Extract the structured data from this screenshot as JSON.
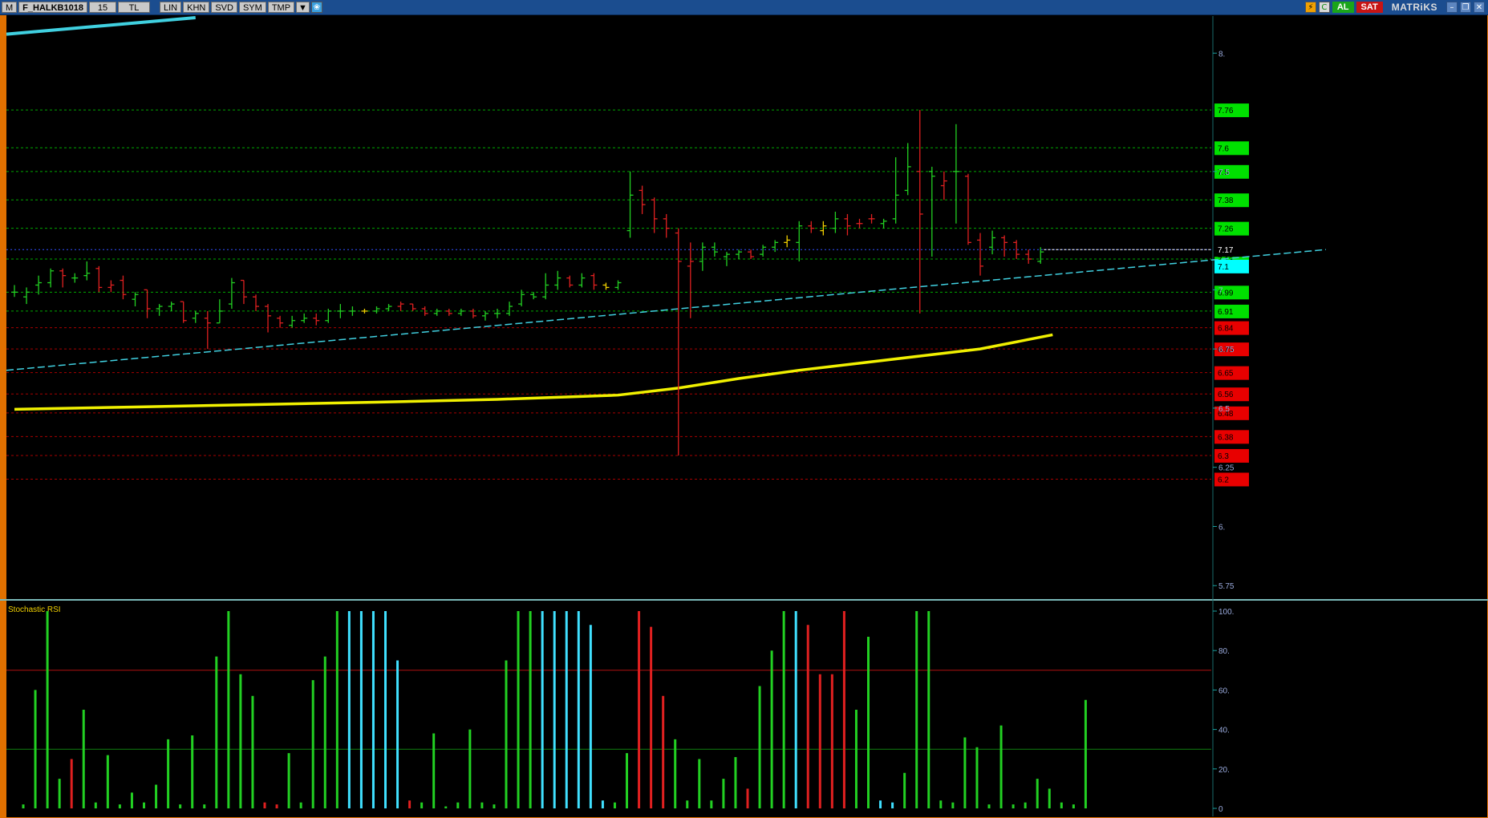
{
  "titlebar": {
    "menu_glyph": "M",
    "symbol": "F_HALKB1018",
    "period": "15",
    "currency": "TL",
    "buttons": [
      "LIN",
      "KHN",
      "SVD",
      "SYM",
      "TMP"
    ],
    "buy_label": "AL",
    "sell_label": "SAT",
    "brand": "MATRiKS"
  },
  "chart_data": [
    {
      "type": "ohlc",
      "title": "",
      "ylim": [
        5.7,
        8.15
      ],
      "axis_ticks": [
        "8.",
        "7.5",
        "7.",
        "6.75",
        "6.5",
        "6.25",
        "6.",
        "5.75"
      ],
      "price_levels": [
        {
          "value": 7.76,
          "label": "7.76",
          "color": "#00e000"
        },
        {
          "value": 7.6,
          "label": "7.6",
          "color": "#00e000"
        },
        {
          "value": 7.5,
          "label": "7.5",
          "color": "#00e000"
        },
        {
          "value": 7.38,
          "label": "7.38",
          "color": "#00e000"
        },
        {
          "value": 7.26,
          "label": "7.26",
          "color": "#00e000"
        },
        {
          "value": 7.13,
          "label": "7.13",
          "color": "#00e000"
        },
        {
          "value": 6.99,
          "label": "6.99",
          "color": "#00e000"
        },
        {
          "value": 6.91,
          "label": "6.91",
          "color": "#00e000"
        },
        {
          "value": 6.84,
          "label": "6.84",
          "color": "#e00000"
        },
        {
          "value": 6.75,
          "label": "6.75",
          "color": "#e00000"
        },
        {
          "value": 6.65,
          "label": "6.65",
          "color": "#e00000"
        },
        {
          "value": 6.56,
          "label": "6.56",
          "color": "#e00000"
        },
        {
          "value": 6.48,
          "label": "6.48",
          "color": "#e00000"
        },
        {
          "value": 6.38,
          "label": "6.38",
          "color": "#e00000"
        },
        {
          "value": 6.3,
          "label": "6.3",
          "color": "#e00000"
        },
        {
          "value": 6.2,
          "label": "6.2",
          "color": "#e00000"
        }
      ],
      "last_price": {
        "value": 7.17,
        "label": "7.17"
      },
      "cyan_marker": {
        "value": 7.1,
        "label": "7.1"
      },
      "trendline": {
        "start": [
          0,
          6.66
        ],
        "end": [
          98,
          7.17
        ]
      },
      "trendline_top": {
        "start": [
          0,
          8.08
        ],
        "end": [
          15,
          8.15
        ]
      },
      "moving_average": [
        [
          0,
          6.495
        ],
        [
          10,
          6.505
        ],
        [
          20,
          6.515
        ],
        [
          30,
          6.525
        ],
        [
          40,
          6.537
        ],
        [
          50,
          6.555
        ],
        [
          55,
          6.585
        ],
        [
          60,
          6.625
        ],
        [
          65,
          6.66
        ],
        [
          70,
          6.69
        ],
        [
          75,
          6.72
        ],
        [
          80,
          6.75
        ],
        [
          84,
          6.79
        ],
        [
          86,
          6.81
        ]
      ],
      "bars": [
        {
          "o": 6.99,
          "h": 7.02,
          "l": 6.97,
          "c": 6.99,
          "d": "u"
        },
        {
          "o": 6.97,
          "h": 7.01,
          "l": 6.94,
          "c": 6.99,
          "d": "u"
        },
        {
          "o": 7.02,
          "h": 7.06,
          "l": 6.98,
          "c": 7.03,
          "d": "u"
        },
        {
          "o": 7.03,
          "h": 7.09,
          "l": 7.01,
          "c": 7.08,
          "d": "u"
        },
        {
          "o": 7.08,
          "h": 7.09,
          "l": 7.01,
          "c": 7.06,
          "d": "d"
        },
        {
          "o": 7.05,
          "h": 7.07,
          "l": 7.03,
          "c": 7.05,
          "d": "u"
        },
        {
          "o": 7.06,
          "h": 7.12,
          "l": 7.04,
          "c": 7.07,
          "d": "u"
        },
        {
          "o": 7.09,
          "h": 7.1,
          "l": 6.99,
          "c": 7.01,
          "d": "d"
        },
        {
          "o": 7.01,
          "h": 7.04,
          "l": 6.99,
          "c": 7.02,
          "d": "d"
        },
        {
          "o": 7.04,
          "h": 7.06,
          "l": 6.96,
          "c": 6.98,
          "d": "d"
        },
        {
          "o": 6.96,
          "h": 6.99,
          "l": 6.93,
          "c": 6.98,
          "d": "u"
        },
        {
          "o": 7.0,
          "h": 7.0,
          "l": 6.88,
          "c": 6.92,
          "d": "d"
        },
        {
          "o": 6.92,
          "h": 6.94,
          "l": 6.89,
          "c": 6.93,
          "d": "u"
        },
        {
          "o": 6.93,
          "h": 6.95,
          "l": 6.91,
          "c": 6.94,
          "d": "u"
        },
        {
          "o": 6.95,
          "h": 6.95,
          "l": 6.86,
          "c": 6.87,
          "d": "d"
        },
        {
          "o": 6.88,
          "h": 6.91,
          "l": 6.86,
          "c": 6.9,
          "d": "u"
        },
        {
          "o": 6.88,
          "h": 6.91,
          "l": 6.75,
          "c": 6.86,
          "d": "d"
        },
        {
          "o": 6.86,
          "h": 6.96,
          "l": 6.86,
          "c": 6.91,
          "d": "u"
        },
        {
          "o": 6.94,
          "h": 7.05,
          "l": 6.92,
          "c": 7.03,
          "d": "u"
        },
        {
          "o": 7.04,
          "h": 7.04,
          "l": 6.94,
          "c": 6.97,
          "d": "d"
        },
        {
          "o": 6.97,
          "h": 6.98,
          "l": 6.91,
          "c": 6.93,
          "d": "d"
        },
        {
          "o": 6.93,
          "h": 6.94,
          "l": 6.82,
          "c": 6.89,
          "d": "d"
        },
        {
          "o": 6.88,
          "h": 6.89,
          "l": 6.84,
          "c": 6.86,
          "d": "d"
        },
        {
          "o": 6.85,
          "h": 6.89,
          "l": 6.84,
          "c": 6.87,
          "d": "u"
        },
        {
          "o": 6.87,
          "h": 6.9,
          "l": 6.86,
          "c": 6.88,
          "d": "u"
        },
        {
          "o": 6.88,
          "h": 6.9,
          "l": 6.85,
          "c": 6.87,
          "d": "d"
        },
        {
          "o": 6.87,
          "h": 6.92,
          "l": 6.86,
          "c": 6.91,
          "d": "u"
        },
        {
          "o": 6.91,
          "h": 6.94,
          "l": 6.88,
          "c": 6.91,
          "d": "u"
        },
        {
          "o": 6.91,
          "h": 6.93,
          "l": 6.89,
          "c": 6.91,
          "d": "u"
        },
        {
          "o": 6.91,
          "h": 6.92,
          "l": 6.9,
          "c": 6.91,
          "d": "y"
        },
        {
          "o": 6.91,
          "h": 6.93,
          "l": 6.9,
          "c": 6.92,
          "d": "u"
        },
        {
          "o": 6.92,
          "h": 6.94,
          "l": 6.91,
          "c": 6.93,
          "d": "u"
        },
        {
          "o": 6.93,
          "h": 6.95,
          "l": 6.91,
          "c": 6.94,
          "d": "d"
        },
        {
          "o": 6.94,
          "h": 6.94,
          "l": 6.91,
          "c": 6.92,
          "d": "d"
        },
        {
          "o": 6.92,
          "h": 6.93,
          "l": 6.89,
          "c": 6.9,
          "d": "d"
        },
        {
          "o": 6.9,
          "h": 6.92,
          "l": 6.89,
          "c": 6.91,
          "d": "u"
        },
        {
          "o": 6.91,
          "h": 6.92,
          "l": 6.89,
          "c": 6.9,
          "d": "d"
        },
        {
          "o": 6.9,
          "h": 6.92,
          "l": 6.89,
          "c": 6.91,
          "d": "u"
        },
        {
          "o": 6.91,
          "h": 6.92,
          "l": 6.88,
          "c": 6.89,
          "d": "d"
        },
        {
          "o": 6.89,
          "h": 6.91,
          "l": 6.87,
          "c": 6.9,
          "d": "u"
        },
        {
          "o": 6.9,
          "h": 6.92,
          "l": 6.88,
          "c": 6.9,
          "d": "u"
        },
        {
          "o": 6.9,
          "h": 6.95,
          "l": 6.89,
          "c": 6.93,
          "d": "u"
        },
        {
          "o": 6.94,
          "h": 7.0,
          "l": 6.93,
          "c": 6.98,
          "d": "u"
        },
        {
          "o": 6.98,
          "h": 6.99,
          "l": 6.96,
          "c": 6.97,
          "d": "u"
        },
        {
          "o": 6.97,
          "h": 7.07,
          "l": 6.96,
          "c": 7.02,
          "d": "u"
        },
        {
          "o": 7.02,
          "h": 7.08,
          "l": 7.0,
          "c": 7.05,
          "d": "u"
        },
        {
          "o": 7.05,
          "h": 7.06,
          "l": 7.01,
          "c": 7.02,
          "d": "d"
        },
        {
          "o": 7.02,
          "h": 7.07,
          "l": 7.01,
          "c": 7.05,
          "d": "u"
        },
        {
          "o": 7.06,
          "h": 7.07,
          "l": 7.0,
          "c": 7.02,
          "d": "d"
        },
        {
          "o": 7.02,
          "h": 7.03,
          "l": 7.0,
          "c": 7.01,
          "d": "y"
        },
        {
          "o": 7.01,
          "h": 7.04,
          "l": 7.0,
          "c": 7.03,
          "d": "u"
        },
        {
          "o": 7.25,
          "h": 7.5,
          "l": 7.22,
          "c": 7.4,
          "d": "u"
        },
        {
          "o": 7.42,
          "h": 7.44,
          "l": 7.32,
          "c": 7.36,
          "d": "d"
        },
        {
          "o": 7.38,
          "h": 7.39,
          "l": 7.24,
          "c": 7.3,
          "d": "d"
        },
        {
          "o": 7.3,
          "h": 7.32,
          "l": 7.22,
          "c": 7.26,
          "d": "d"
        },
        {
          "o": 7.24,
          "h": 7.26,
          "l": 6.3,
          "c": 7.12,
          "d": "d"
        },
        {
          "o": 7.1,
          "h": 7.2,
          "l": 6.88,
          "c": 7.12,
          "d": "d"
        },
        {
          "o": 7.12,
          "h": 7.2,
          "l": 7.08,
          "c": 7.18,
          "d": "u"
        },
        {
          "o": 7.18,
          "h": 7.2,
          "l": 7.14,
          "c": 7.16,
          "d": "u"
        },
        {
          "o": 7.14,
          "h": 7.16,
          "l": 7.1,
          "c": 7.15,
          "d": "u"
        },
        {
          "o": 7.15,
          "h": 7.17,
          "l": 7.13,
          "c": 7.16,
          "d": "u"
        },
        {
          "o": 7.16,
          "h": 7.17,
          "l": 7.13,
          "c": 7.14,
          "d": "d"
        },
        {
          "o": 7.15,
          "h": 7.19,
          "l": 7.14,
          "c": 7.18,
          "d": "u"
        },
        {
          "o": 7.18,
          "h": 7.21,
          "l": 7.16,
          "c": 7.2,
          "d": "u"
        },
        {
          "o": 7.2,
          "h": 7.23,
          "l": 7.18,
          "c": 7.21,
          "d": "y"
        },
        {
          "o": 7.2,
          "h": 7.29,
          "l": 7.12,
          "c": 7.27,
          "d": "u"
        },
        {
          "o": 7.27,
          "h": 7.29,
          "l": 7.24,
          "c": 7.26,
          "d": "d"
        },
        {
          "o": 7.25,
          "h": 7.29,
          "l": 7.23,
          "c": 7.27,
          "d": "y"
        },
        {
          "o": 7.26,
          "h": 7.33,
          "l": 7.24,
          "c": 7.3,
          "d": "u"
        },
        {
          "o": 7.3,
          "h": 7.32,
          "l": 7.23,
          "c": 7.27,
          "d": "d"
        },
        {
          "o": 7.28,
          "h": 7.3,
          "l": 7.26,
          "c": 7.28,
          "d": "d"
        },
        {
          "o": 7.3,
          "h": 7.32,
          "l": 7.28,
          "c": 7.3,
          "d": "d"
        },
        {
          "o": 7.28,
          "h": 7.3,
          "l": 7.26,
          "c": 7.29,
          "d": "u"
        },
        {
          "o": 7.3,
          "h": 7.56,
          "l": 7.28,
          "c": 7.4,
          "d": "u"
        },
        {
          "o": 7.42,
          "h": 7.62,
          "l": 7.4,
          "c": 7.52,
          "d": "u"
        },
        {
          "o": 7.5,
          "h": 7.76,
          "l": 6.9,
          "c": 7.32,
          "d": "d"
        },
        {
          "o": 7.5,
          "h": 7.52,
          "l": 7.14,
          "c": 7.48,
          "d": "u"
        },
        {
          "o": 7.44,
          "h": 7.5,
          "l": 7.38,
          "c": 7.46,
          "d": "d"
        },
        {
          "o": 7.5,
          "h": 7.7,
          "l": 7.28,
          "c": 7.5,
          "d": "u"
        },
        {
          "o": 7.48,
          "h": 7.49,
          "l": 7.19,
          "c": 7.2,
          "d": "d"
        },
        {
          "o": 7.21,
          "h": 7.24,
          "l": 7.06,
          "c": 7.1,
          "d": "d"
        },
        {
          "o": 7.18,
          "h": 7.25,
          "l": 7.15,
          "c": 7.22,
          "d": "u"
        },
        {
          "o": 7.22,
          "h": 7.23,
          "l": 7.14,
          "c": 7.2,
          "d": "d"
        },
        {
          "o": 7.2,
          "h": 7.21,
          "l": 7.13,
          "c": 7.15,
          "d": "d"
        },
        {
          "o": 7.15,
          "h": 7.17,
          "l": 7.11,
          "c": 7.13,
          "d": "d"
        },
        {
          "o": 7.12,
          "h": 7.18,
          "l": 7.11,
          "c": 7.16,
          "d": "u"
        }
      ]
    },
    {
      "type": "bar",
      "title": "Stochastic RSI",
      "ylim": [
        0,
        100
      ],
      "axis_ticks": [
        "100.",
        "80.",
        "60.",
        "40.",
        "20.",
        "0"
      ],
      "levels": [
        70,
        30
      ],
      "values": [
        2,
        60,
        100,
        15,
        25,
        50,
        3,
        27,
        2,
        8,
        3,
        12,
        35,
        2,
        37,
        2,
        77,
        100,
        68,
        57,
        3,
        2,
        28,
        3,
        65,
        77,
        100,
        100,
        100,
        100,
        100,
        75,
        4,
        3,
        38,
        1,
        3,
        40,
        3,
        2,
        75,
        100,
        100,
        100,
        100,
        100,
        100,
        93,
        4,
        3,
        28,
        100,
        92,
        57,
        35,
        4,
        25,
        4,
        15,
        26,
        10,
        62,
        80,
        100,
        100,
        93,
        68,
        68,
        100,
        50,
        87,
        4,
        3,
        18,
        100,
        100,
        4,
        3,
        36,
        31,
        2,
        42,
        2,
        3,
        15,
        10,
        3,
        2,
        55
      ],
      "colors": "ggggrgggggggggggggggrrgggggcccccrggggggggggccccccggrrrggggggrgggcrrrrggccgggggggggggggg"
    }
  ]
}
